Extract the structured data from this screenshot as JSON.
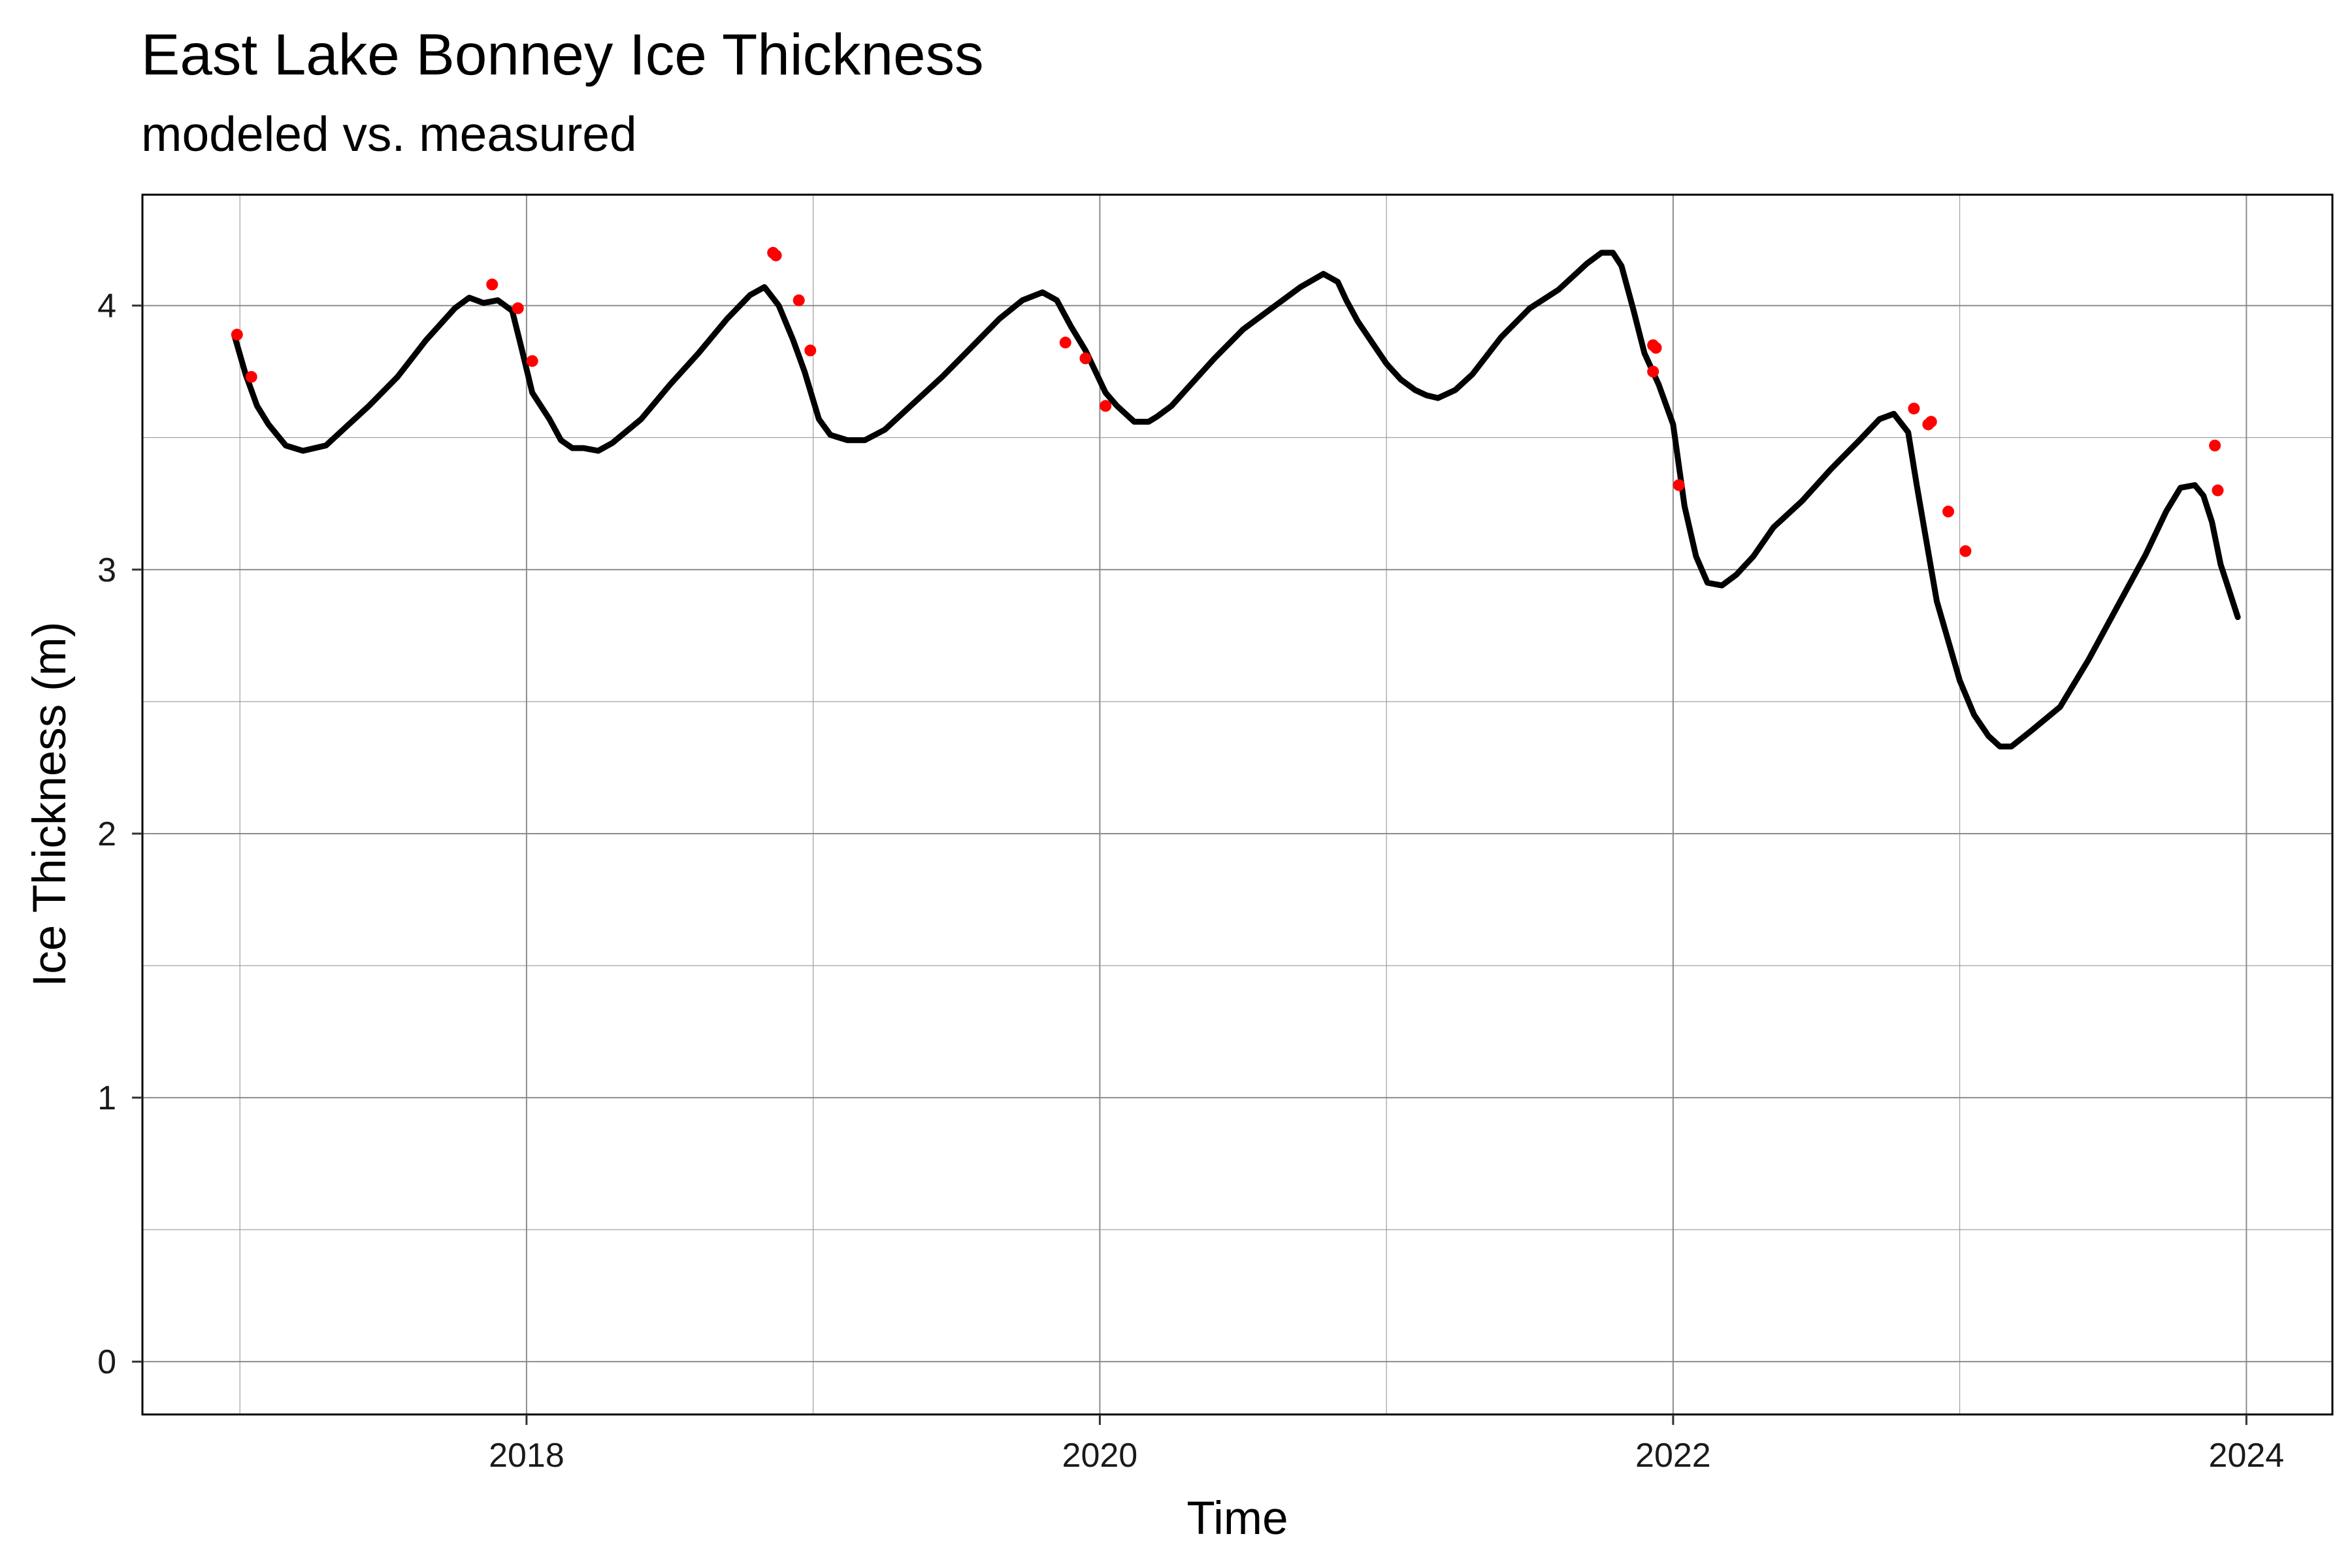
{
  "chart_data": {
    "type": "line",
    "title": "East Lake Bonney Ice Thickness",
    "subtitle": "modeled vs. measured",
    "xlabel": "Time",
    "ylabel": "Ice Thickness (m)",
    "xlim": [
      2016.66,
      2024.3
    ],
    "ylim": [
      -0.2,
      4.42
    ],
    "x_ticks": [
      2018,
      2020,
      2022,
      2024
    ],
    "y_ticks": [
      0,
      1,
      2,
      3,
      4
    ],
    "grid": true,
    "legend": "none",
    "colors": {
      "modeled": "#000000",
      "measured": "#ff0000",
      "grid": "#8c8c8c",
      "frame": "#000000"
    },
    "series": [
      {
        "style": "line",
        "x": [
          2016.98,
          2017.02,
          2017.06,
          2017.1,
          2017.16,
          2017.22,
          2017.3,
          2017.38,
          2017.45,
          2017.55,
          2017.65,
          2017.75,
          2017.8,
          2017.85,
          2017.9,
          2017.95,
          2017.98,
          2018.02,
          2018.08,
          2018.12,
          2018.16,
          2018.2,
          2018.25,
          2018.3,
          2018.4,
          2018.5,
          2018.6,
          2018.7,
          2018.78,
          2018.83,
          2018.88,
          2018.93,
          2018.97,
          2019.02,
          2019.06,
          2019.12,
          2019.18,
          2019.25,
          2019.35,
          2019.45,
          2019.55,
          2019.65,
          2019.73,
          2019.8,
          2019.85,
          2019.9,
          2019.95,
          2020.02,
          2020.06,
          2020.12,
          2020.17,
          2020.2,
          2020.25,
          2020.3,
          2020.4,
          2020.5,
          2020.6,
          2020.7,
          2020.78,
          2020.83,
          2020.86,
          2020.9,
          2020.95,
          2021.0,
          2021.05,
          2021.1,
          2021.14,
          2021.18,
          2021.24,
          2021.3,
          2021.4,
          2021.5,
          2021.6,
          2021.7,
          2021.75,
          2021.79,
          2021.82,
          2021.86,
          2021.9,
          2021.95,
          2022.0,
          2022.04,
          2022.08,
          2022.12,
          2022.17,
          2022.22,
          2022.28,
          2022.35,
          2022.45,
          2022.55,
          2022.65,
          2022.72,
          2022.77,
          2022.82,
          2022.85,
          2022.88,
          2022.92,
          2022.96,
          2023.0,
          2023.05,
          2023.1,
          2023.14,
          2023.18,
          2023.25,
          2023.35,
          2023.45,
          2023.55,
          2023.65,
          2023.72,
          2023.77,
          2023.82,
          2023.85,
          2023.88,
          2023.91,
          2023.94,
          2023.97
        ],
        "y": [
          3.89,
          3.74,
          3.62,
          3.55,
          3.47,
          3.45,
          3.47,
          3.55,
          3.62,
          3.73,
          3.87,
          3.99,
          4.03,
          4.01,
          4.02,
          3.98,
          3.85,
          3.67,
          3.57,
          3.49,
          3.46,
          3.46,
          3.45,
          3.48,
          3.57,
          3.7,
          3.82,
          3.95,
          4.04,
          4.07,
          4.0,
          3.87,
          3.75,
          3.57,
          3.51,
          3.49,
          3.49,
          3.53,
          3.63,
          3.73,
          3.84,
          3.95,
          4.02,
          4.05,
          4.02,
          3.92,
          3.83,
          3.67,
          3.62,
          3.56,
          3.56,
          3.58,
          3.62,
          3.68,
          3.8,
          3.91,
          3.99,
          4.07,
          4.12,
          4.09,
          4.02,
          3.94,
          3.86,
          3.78,
          3.72,
          3.68,
          3.66,
          3.65,
          3.68,
          3.74,
          3.88,
          3.99,
          4.06,
          4.16,
          4.2,
          4.2,
          4.15,
          3.99,
          3.82,
          3.7,
          3.55,
          3.24,
          3.05,
          2.95,
          2.94,
          2.98,
          3.05,
          3.16,
          3.26,
          3.38,
          3.49,
          3.57,
          3.59,
          3.52,
          3.32,
          3.13,
          2.88,
          2.73,
          2.58,
          2.45,
          2.37,
          2.33,
          2.33,
          2.39,
          2.48,
          2.66,
          2.86,
          3.06,
          3.22,
          3.31,
          3.32,
          3.28,
          3.18,
          3.02,
          2.92,
          2.82
        ]
      },
      {
        "style": "points",
        "x": [
          2016.99,
          2017.04,
          2017.88,
          2017.97,
          2018.02,
          2018.86,
          2018.87,
          2018.95,
          2018.99,
          2019.88,
          2019.95,
          2020.02,
          2021.93,
          2021.94,
          2021.93,
          2022.02,
          2022.84,
          2022.89,
          2022.9,
          2022.96,
          2023.02,
          2023.89,
          2023.9
        ],
        "y": [
          3.89,
          3.73,
          4.08,
          3.99,
          3.79,
          4.2,
          4.19,
          4.02,
          3.83,
          3.86,
          3.8,
          3.62,
          3.85,
          3.84,
          3.75,
          3.32,
          3.61,
          3.55,
          3.56,
          3.22,
          3.07,
          3.47,
          3.3
        ]
      }
    ]
  }
}
